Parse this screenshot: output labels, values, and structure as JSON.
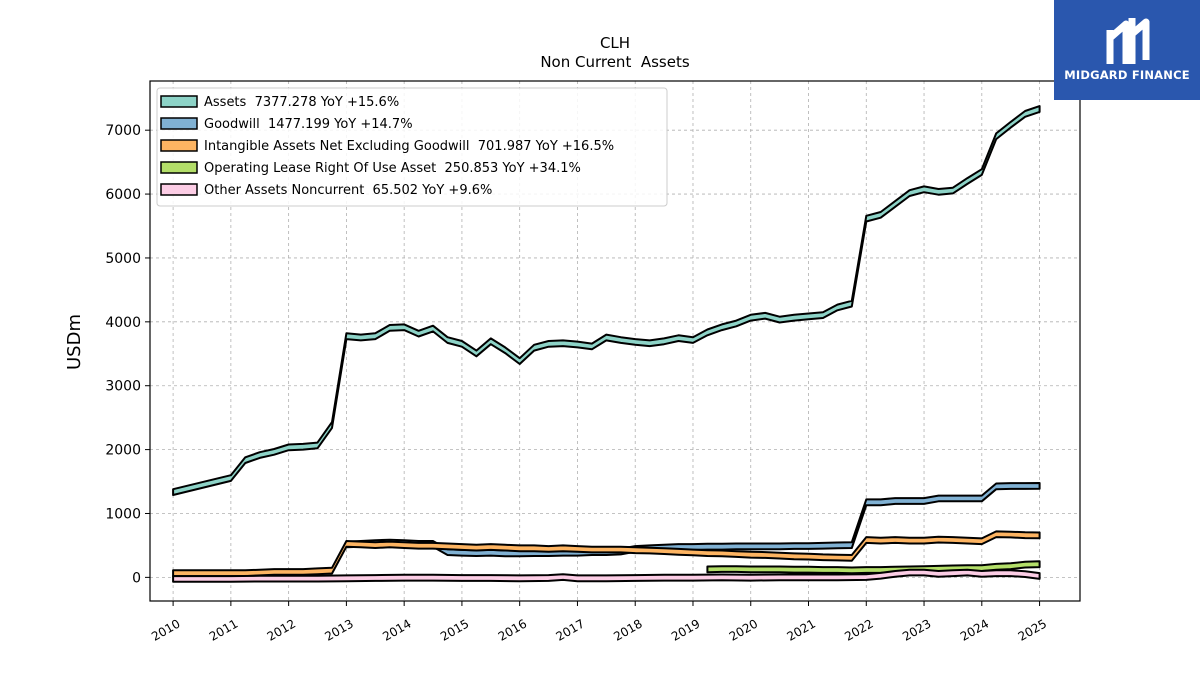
{
  "logo": {
    "text": "MIDGARD FINANCE",
    "bg": "#2a57ae"
  },
  "chart_data": {
    "type": "area",
    "title": "CLH",
    "subtitle": "Non Current  Assets",
    "ylabel": "USDm",
    "xlabel": "",
    "xlim": [
      2009.6,
      2025.7
    ],
    "ylim": [
      -370,
      7770
    ],
    "yticks": [
      0,
      1000,
      2000,
      3000,
      4000,
      5000,
      6000,
      7000
    ],
    "xticks": [
      2010,
      2011,
      2012,
      2013,
      2014,
      2015,
      2016,
      2017,
      2018,
      2019,
      2020,
      2021,
      2022,
      2023,
      2024,
      2025
    ],
    "grid": true,
    "legend_position": "top-left",
    "series": [
      {
        "name": "Assets  7377.278 YoY +15.6%",
        "color": "#8dd3c7",
        "x": [
          2010.0,
          2011.0,
          2011.25,
          2011.5,
          2011.75,
          2012.0,
          2012.25,
          2012.5,
          2012.75,
          2013.0,
          2013.25,
          2013.5,
          2013.75,
          2014.0,
          2014.25,
          2014.5,
          2014.75,
          2015.0,
          2015.25,
          2015.5,
          2015.75,
          2016.0,
          2016.25,
          2016.5,
          2016.75,
          2017.0,
          2017.25,
          2017.5,
          2017.75,
          2018.0,
          2018.25,
          2018.5,
          2018.75,
          2019.0,
          2019.25,
          2019.5,
          2019.75,
          2020.0,
          2020.25,
          2020.5,
          2020.75,
          2021.0,
          2021.25,
          2021.5,
          2021.75,
          2022.0,
          2022.25,
          2022.5,
          2022.75,
          2023.0,
          2023.25,
          2023.5,
          2023.75,
          2024.0,
          2024.25,
          2024.5,
          2024.75,
          2025.0
        ],
        "values": [
          1380,
          1600,
          1880,
          1960,
          2010,
          2080,
          2090,
          2110,
          2430,
          3820,
          3800,
          3820,
          3950,
          3960,
          3860,
          3940,
          3760,
          3700,
          3550,
          3740,
          3600,
          3430,
          3640,
          3700,
          3710,
          3690,
          3660,
          3800,
          3760,
          3730,
          3710,
          3740,
          3790,
          3760,
          3880,
          3960,
          4020,
          4110,
          4140,
          4080,
          4110,
          4130,
          4150,
          4270,
          4330,
          5660,
          5720,
          5890,
          6060,
          6120,
          6080,
          6100,
          6250,
          6390,
          6950,
          7130,
          7300,
          7377
        ]
      },
      {
        "name": "Goodwill  1477.199 YoY +14.7%",
        "color": "#80b1d3",
        "x": [
          2013.0,
          2013.25,
          2013.5,
          2013.75,
          2014.0,
          2014.25,
          2014.5,
          2014.75,
          2015.0,
          2015.25,
          2015.5,
          2015.75,
          2016.0,
          2016.25,
          2016.5,
          2016.75,
          2017.0,
          2017.25,
          2017.5,
          2017.75,
          2018.0,
          2018.25,
          2018.5,
          2018.75,
          2019.0,
          2019.25,
          2019.5,
          2019.75,
          2020.0,
          2020.25,
          2020.5,
          2020.75,
          2021.0,
          2021.25,
          2021.5,
          2021.75,
          2022.0,
          2022.25,
          2022.5,
          2022.75,
          2023.0,
          2023.25,
          2023.5,
          2023.75,
          2024.0,
          2024.25,
          2024.5,
          2024.75,
          2025.0
        ],
        "values": [
          560,
          570,
          580,
          590,
          580,
          570,
          570,
          440,
          430,
          425,
          430,
          420,
          420,
          425,
          425,
          430,
          430,
          440,
          440,
          450,
          490,
          500,
          510,
          520,
          520,
          525,
          525,
          530,
          530,
          530,
          530,
          535,
          535,
          540,
          545,
          550,
          1220,
          1220,
          1240,
          1240,
          1240,
          1280,
          1280,
          1280,
          1280,
          1470,
          1475,
          1475,
          1477
        ]
      },
      {
        "name": "Intangible Assets Net Excluding Goodwill  701.987 YoY +16.5%",
        "color": "#fdb462",
        "x": [
          2010.0,
          2011.0,
          2011.25,
          2011.5,
          2011.75,
          2012.0,
          2012.25,
          2012.5,
          2012.75,
          2013.0,
          2013.25,
          2013.5,
          2013.75,
          2014.0,
          2014.25,
          2014.5,
          2014.75,
          2015.0,
          2015.25,
          2015.5,
          2015.75,
          2016.0,
          2016.25,
          2016.5,
          2016.75,
          2017.0,
          2017.25,
          2017.5,
          2017.75,
          2018.0,
          2018.25,
          2018.5,
          2018.75,
          2019.0,
          2019.25,
          2019.5,
          2019.75,
          2020.0,
          2020.25,
          2020.5,
          2020.75,
          2021.0,
          2021.25,
          2021.5,
          2021.75,
          2022.0,
          2022.25,
          2022.5,
          2022.75,
          2023.0,
          2023.25,
          2023.5,
          2023.75,
          2024.0,
          2024.25,
          2024.5,
          2024.75,
          2025.0
        ],
        "values": [
          110,
          110,
          110,
          120,
          130,
          130,
          130,
          140,
          150,
          570,
          560,
          550,
          560,
          550,
          540,
          540,
          530,
          520,
          510,
          520,
          510,
          500,
          500,
          490,
          500,
          490,
          480,
          480,
          480,
          470,
          465,
          455,
          445,
          435,
          425,
          420,
          410,
          400,
          395,
          385,
          375,
          370,
          360,
          355,
          350,
          630,
          620,
          630,
          620,
          620,
          635,
          630,
          620,
          610,
          720,
          715,
          705,
          702
        ]
      },
      {
        "name": "Operating Lease Right Of Use Asset  250.853 YoY +34.1%",
        "color": "#b3de69",
        "x": [
          2019.25,
          2019.5,
          2019.75,
          2020.0,
          2020.25,
          2020.5,
          2020.75,
          2021.0,
          2021.25,
          2021.5,
          2021.75,
          2022.0,
          2022.25,
          2022.5,
          2022.75,
          2023.0,
          2023.25,
          2023.5,
          2023.75,
          2024.0,
          2024.25,
          2024.5,
          2024.75,
          2025.0
        ],
        "values": [
          170,
          175,
          175,
          170,
          170,
          170,
          165,
          165,
          160,
          160,
          155,
          160,
          160,
          165,
          170,
          175,
          180,
          185,
          190,
          190,
          210,
          220,
          245,
          251
        ]
      },
      {
        "name": "Other Assets Noncurrent  65.502 YoY +9.6%",
        "color": "#fccde5",
        "x": [
          2010.0,
          2011.0,
          2011.5,
          2012.0,
          2012.5,
          2013.0,
          2013.5,
          2014.0,
          2014.5,
          2015.0,
          2015.5,
          2016.0,
          2016.5,
          2016.75,
          2017.0,
          2017.5,
          2018.0,
          2018.5,
          2019.0,
          2019.5,
          2020.0,
          2020.5,
          2021.0,
          2021.5,
          2022.0,
          2022.25,
          2022.5,
          2022.75,
          2023.0,
          2023.25,
          2023.5,
          2023.75,
          2024.0,
          2024.25,
          2024.5,
          2024.75,
          2025.0
        ],
        "values": [
          20,
          20,
          25,
          25,
          25,
          30,
          35,
          40,
          40,
          35,
          35,
          30,
          35,
          50,
          30,
          30,
          35,
          40,
          40,
          45,
          40,
          45,
          45,
          45,
          50,
          70,
          100,
          120,
          120,
          100,
          110,
          120,
          100,
          110,
          110,
          95,
          66
        ]
      }
    ]
  }
}
